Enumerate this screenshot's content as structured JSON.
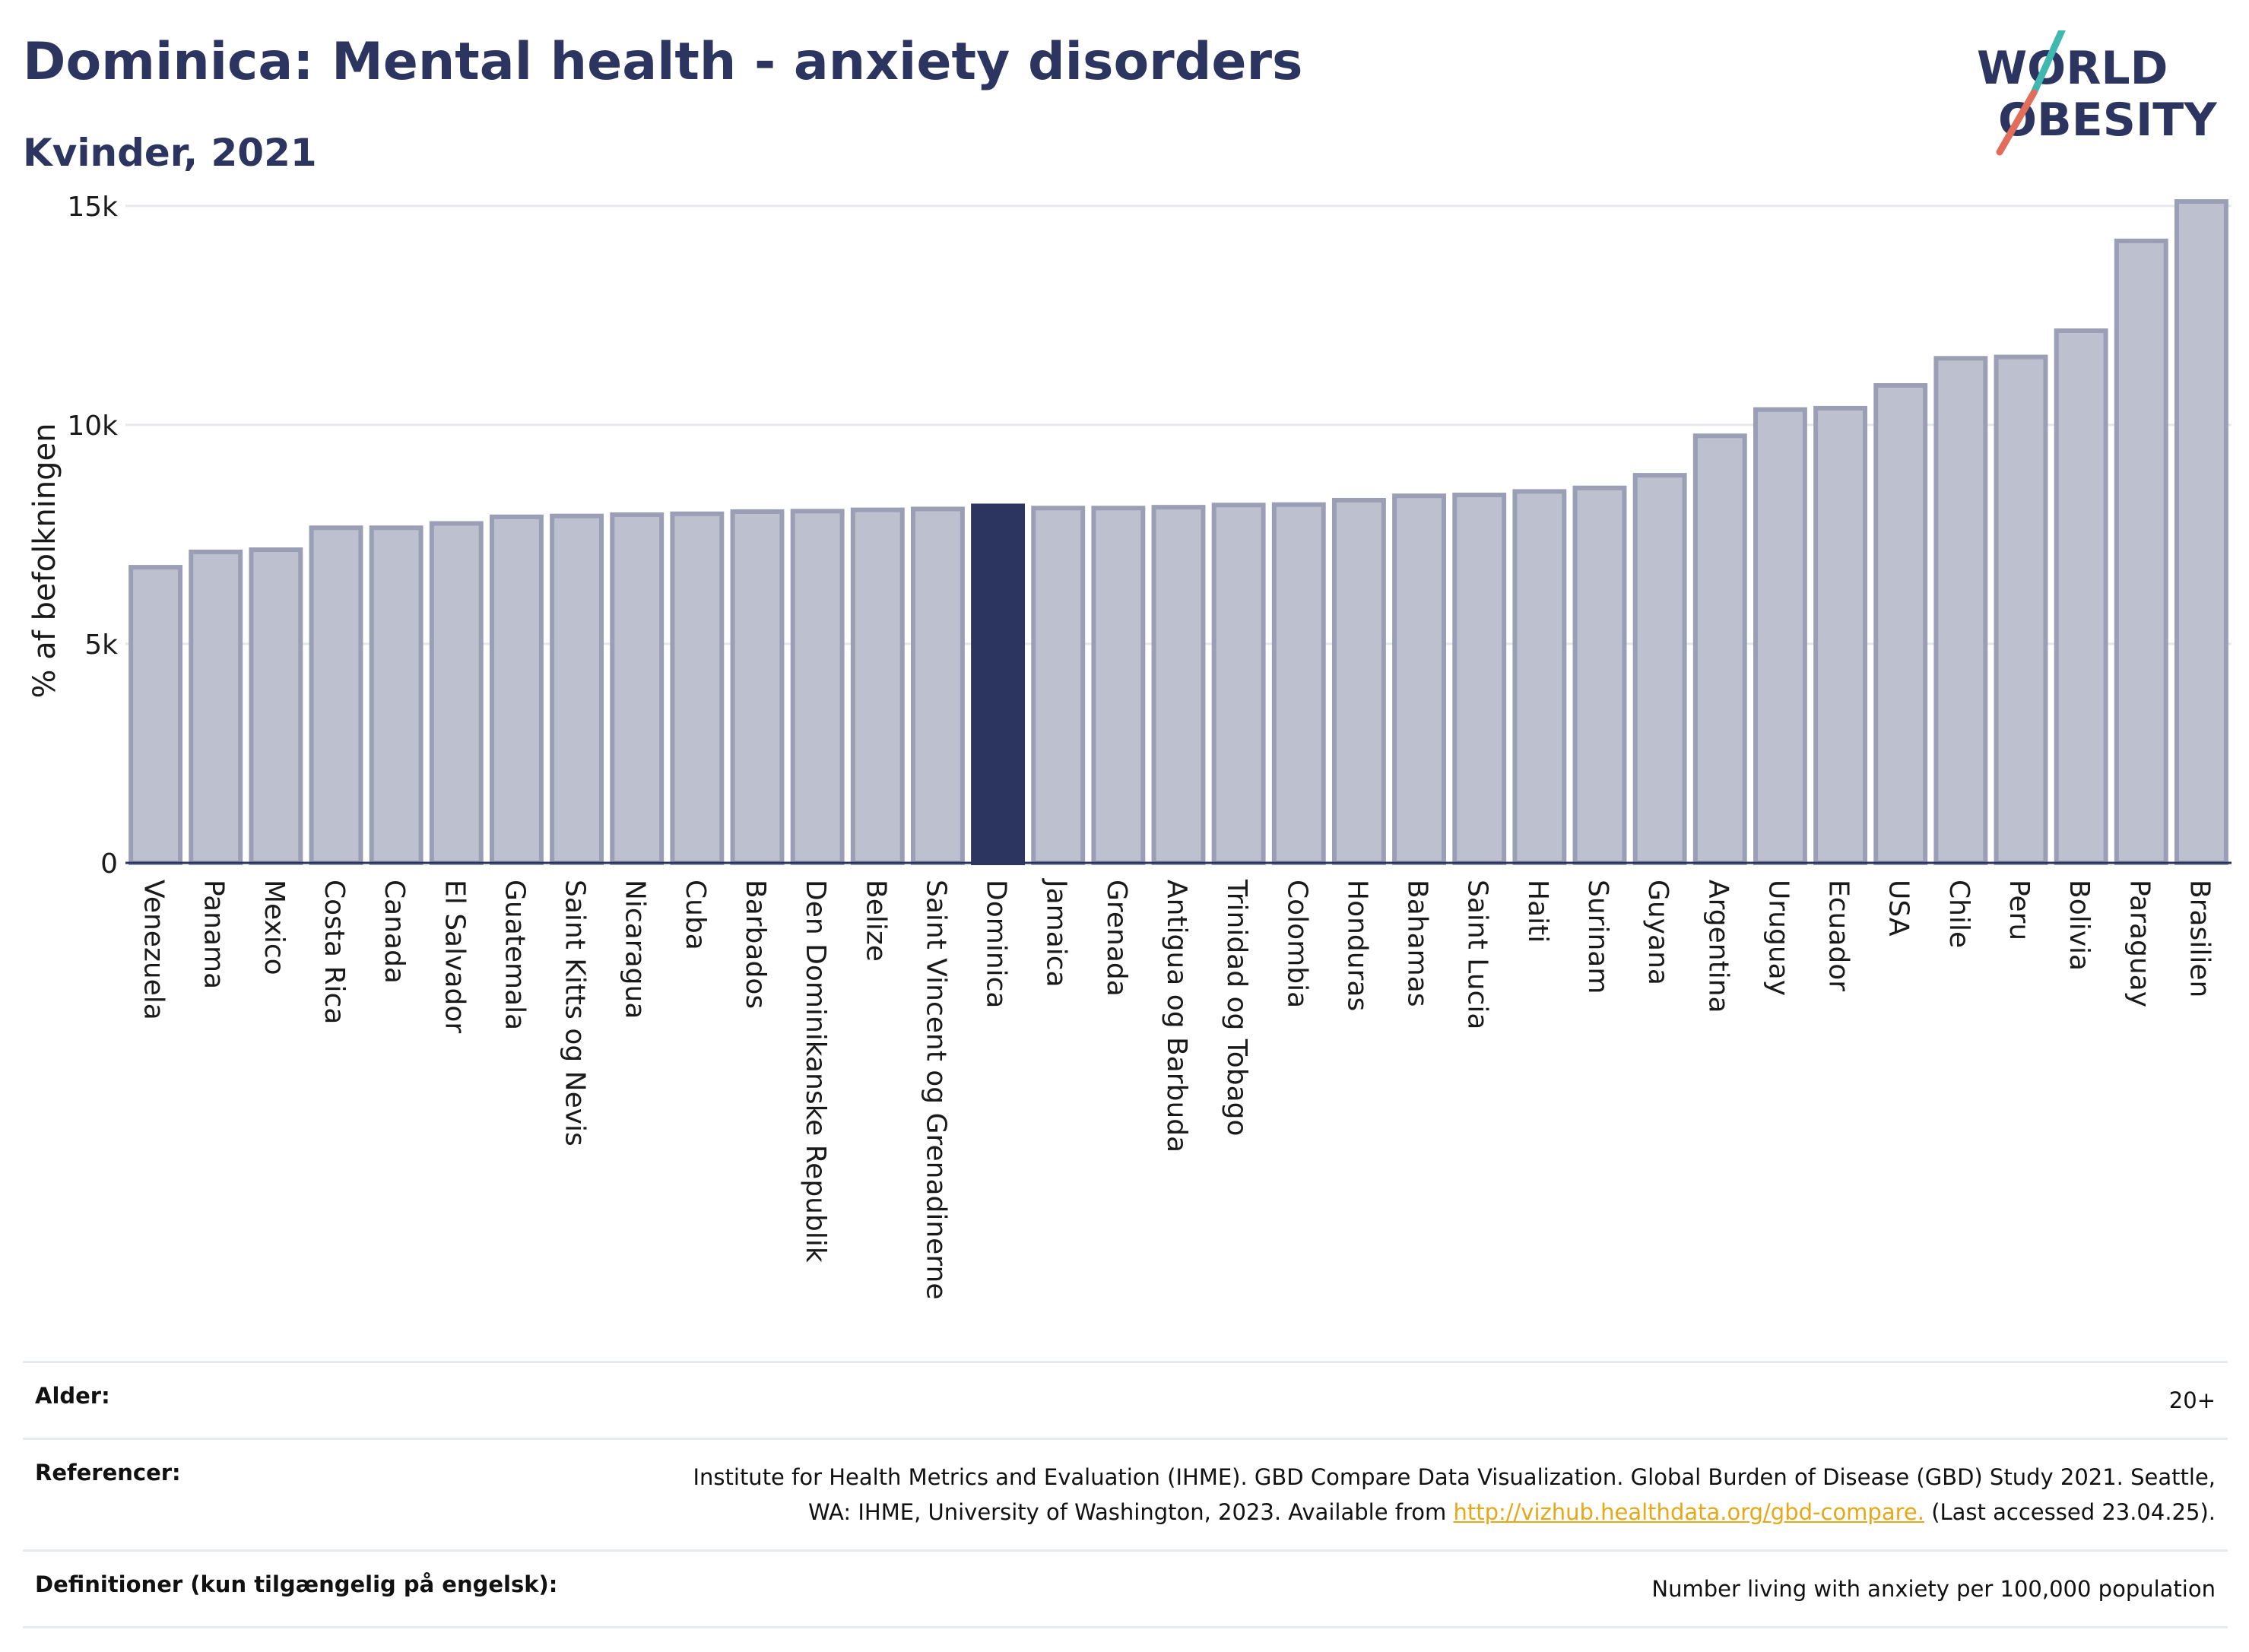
{
  "header": {
    "title": "Dominica: Mental health - anxiety disorders",
    "subtitle": "Kvinder, 2021"
  },
  "logo": {
    "line1": "WORLD",
    "line2": "OBESITY",
    "colors": {
      "text": "#2b3560",
      "slash_teal": "#3fb8b0",
      "slash_red": "#e26d5a"
    }
  },
  "chart_data": {
    "type": "bar",
    "ylabel": "% af befolkningen",
    "ylim": [
      0,
      15000
    ],
    "yticks": [
      0,
      5000,
      10000,
      15000
    ],
    "ytick_labels": [
      "0",
      "5k",
      "10k",
      "15k"
    ],
    "grid": true,
    "highlight": "Dominica",
    "colors": {
      "bar": "#bcc0cf",
      "bar_edge": "#9a9fb5",
      "highlight": "#2b3560"
    },
    "categories": [
      "Venezuela",
      "Panama",
      "Mexico",
      "Costa Rica",
      "Canada",
      "El Salvador",
      "Guatemala",
      "Saint Kitts og Nevis",
      "Nicaragua",
      "Cuba",
      "Barbados",
      "Den Dominikanske Republik",
      "Belize",
      "Saint Vincent og Grenadinerne",
      "Dominica",
      "Jamaica",
      "Grenada",
      "Antigua og Barbuda",
      "Trinidad og Tobago",
      "Colombia",
      "Honduras",
      "Bahamas",
      "Saint Lucia",
      "Haiti",
      "Surinam",
      "Guyana",
      "Argentina",
      "Uruguay",
      "Ecuador",
      "USA",
      "Chile",
      "Peru",
      "Bolivia",
      "Paraguay",
      "Brasilien"
    ],
    "values": [
      6750,
      7100,
      7150,
      7650,
      7650,
      7750,
      7900,
      7920,
      7950,
      7970,
      8020,
      8030,
      8060,
      8080,
      8150,
      8100,
      8100,
      8120,
      8170,
      8180,
      8280,
      8380,
      8400,
      8480,
      8560,
      8850,
      9750,
      10350,
      10380,
      10900,
      11520,
      11550,
      12150,
      14200,
      15100
    ]
  },
  "footer": {
    "age_label": "Alder:",
    "age_value": "20+",
    "ref_label": "Referencer:",
    "ref_text_1": "Institute for Health Metrics and Evaluation (IHME). GBD Compare Data Visualization. Global Burden of Disease (GBD) Study 2021. Seattle, WA: IHME, University of Washington, 2023. Available from",
    "ref_link": "http://vizhub.healthdata.org/gbd-compare.",
    "ref_text_2": "(Last accessed 23.04.25).",
    "def_label": "Definitioner (kun tilgængelig på engelsk):",
    "def_value": "Number living with anxiety per 100,000 population"
  }
}
